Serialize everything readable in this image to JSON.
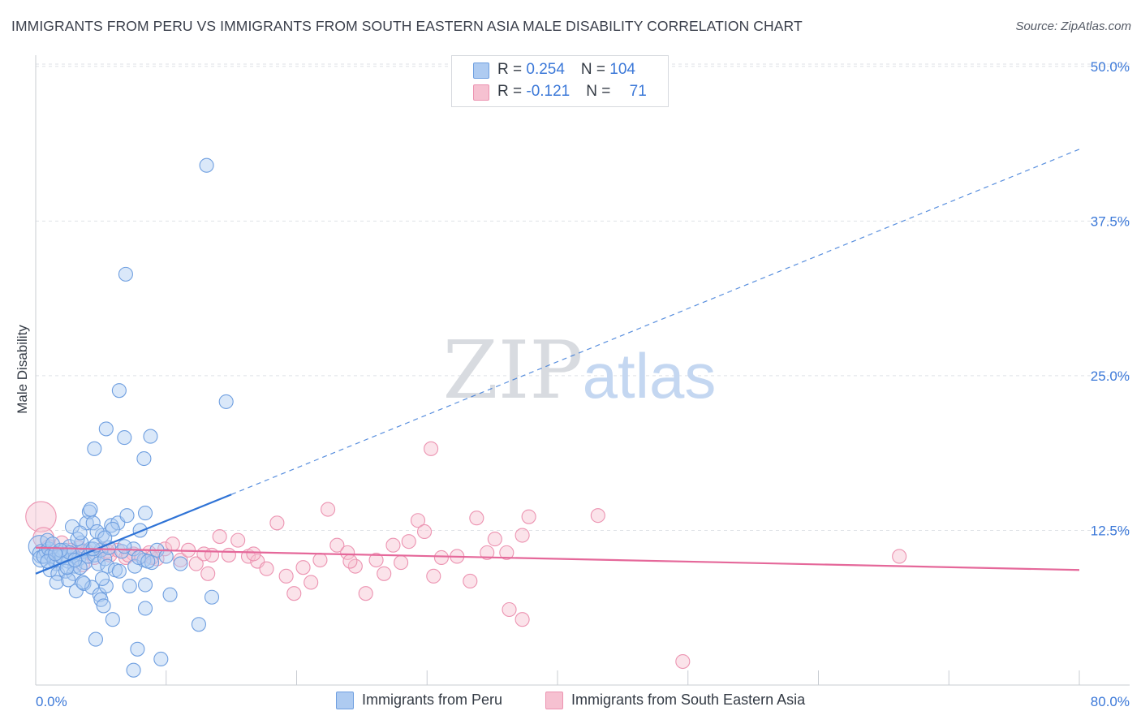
{
  "title": "IMMIGRANTS FROM PERU VS IMMIGRANTS FROM SOUTH EASTERN ASIA MALE DISABILITY CORRELATION CHART",
  "source": "Source: ZipAtlas.com",
  "watermark": {
    "zip": "ZIP",
    "atlas": "atlas"
  },
  "legend": {
    "peru": {
      "r_label": "R = ",
      "r_value": "0.254",
      "n_label": "N = ",
      "n_value": "104"
    },
    "sea": {
      "r_label": "R = ",
      "r_value": "-0.121",
      "n_label": "N = ",
      "n_value": "71"
    }
  },
  "colors": {
    "peru_fill": "#aecbf1",
    "peru_stroke": "#6f9fe0",
    "peru_line": "#2f73d6",
    "sea_fill": "#f6c1d1",
    "sea_stroke": "#ec93b1",
    "sea_line": "#e5689a",
    "tick_label": "#3b78d8",
    "grid": "#dfe2e7"
  },
  "chart_data": {
    "type": "scatter",
    "title": "IMMIGRANTS FROM PERU VS IMMIGRANTS FROM SOUTH EASTERN ASIA MALE DISABILITY CORRELATION CHART",
    "xlabel": "",
    "ylabel": "Male Disability",
    "xlim": [
      0,
      80
    ],
    "ylim": [
      0,
      52
    ],
    "x_tick_labels": [
      "0.0%",
      "80.0%"
    ],
    "y_ticks": [
      12.5,
      25.0,
      37.5,
      50.0
    ],
    "y_tick_labels": [
      "12.5%",
      "25.0%",
      "37.5%",
      "50.0%"
    ],
    "grid": true,
    "legend_position": "top-center",
    "series": [
      {
        "name": "Immigrants from Peru",
        "r": 0.254,
        "n": 104,
        "trend": {
          "x0": 0.0,
          "y0": 9.0,
          "x1": 15.0,
          "y1": 15.4,
          "dashed_to_x": 80.0,
          "dashed_to_y": 43.3
        },
        "points": [
          [
            0.3,
            11.2,
            1.6
          ],
          [
            0.5,
            10.6,
            1.4
          ],
          [
            0.4,
            10.2,
            1.2
          ],
          [
            0.8,
            10.8,
            1.0
          ],
          [
            0.6,
            10.4,
            1.0
          ],
          [
            1.0,
            11.0,
            0.9
          ],
          [
            1.2,
            10.5,
            0.9
          ],
          [
            1.4,
            10.1,
            0.8
          ],
          [
            1.8,
            10.7,
            0.8
          ],
          [
            1.6,
            9.8,
            0.8
          ],
          [
            2.0,
            10.3,
            0.8
          ],
          [
            2.2,
            10.9,
            0.7
          ],
          [
            2.5,
            10.0,
            0.7
          ],
          [
            2.8,
            10.6,
            0.7
          ],
          [
            3.0,
            9.6,
            0.7
          ],
          [
            3.3,
            10.2,
            0.7
          ],
          [
            3.6,
            10.8,
            0.7
          ],
          [
            3.8,
            9.9,
            0.7
          ],
          [
            4.0,
            10.4,
            0.7
          ],
          [
            4.2,
            11.0,
            0.7
          ],
          [
            1.1,
            9.3,
            0.6
          ],
          [
            1.7,
            9.0,
            0.6
          ],
          [
            2.3,
            9.2,
            0.6
          ],
          [
            2.9,
            9.0,
            0.6
          ],
          [
            3.4,
            9.5,
            0.6
          ],
          [
            4.5,
            10.5,
            0.6
          ],
          [
            4.8,
            9.8,
            0.6
          ],
          [
            5.0,
            10.9,
            0.6
          ],
          [
            5.3,
            10.2,
            0.6
          ],
          [
            0.9,
            11.7,
            0.6
          ],
          [
            1.3,
            11.4,
            0.6
          ],
          [
            2.6,
            11.2,
            0.6
          ],
          [
            3.5,
            11.5,
            0.6
          ],
          [
            4.4,
            11.0,
            0.6
          ],
          [
            5.5,
            9.6,
            0.6
          ],
          [
            1.6,
            8.3,
            0.5
          ],
          [
            2.5,
            8.5,
            0.5
          ],
          [
            3.1,
            7.6,
            0.5
          ],
          [
            3.7,
            8.2,
            0.5
          ],
          [
            4.3,
            7.9,
            0.5
          ],
          [
            4.9,
            7.3,
            0.5
          ],
          [
            5.4,
            8.0,
            0.5
          ],
          [
            2.8,
            12.8,
            0.5
          ],
          [
            3.9,
            13.1,
            0.5
          ],
          [
            4.1,
            14.0,
            0.5
          ],
          [
            5.1,
            12.1,
            0.5
          ],
          [
            5.6,
            11.1,
            0.5
          ],
          [
            6.1,
            9.3,
            0.5
          ],
          [
            6.6,
            10.8,
            0.5
          ],
          [
            7.2,
            8.0,
            0.5
          ],
          [
            7.6,
            9.6,
            0.5
          ],
          [
            8.0,
            12.5,
            0.5
          ],
          [
            8.3,
            10.1,
            0.5
          ],
          [
            5.8,
            12.9,
            0.5
          ],
          [
            6.3,
            13.1,
            0.5
          ],
          [
            7.0,
            13.7,
            0.5
          ],
          [
            7.5,
            11.0,
            0.5
          ],
          [
            8.4,
            8.1,
            0.5
          ],
          [
            4.4,
            13.1,
            0.5
          ],
          [
            4.7,
            12.4,
            0.5
          ],
          [
            3.2,
            11.8,
            0.5
          ],
          [
            4.2,
            14.2,
            0.5
          ],
          [
            5.9,
            12.6,
            0.5
          ],
          [
            6.8,
            11.2,
            0.5
          ],
          [
            7.9,
            10.3,
            0.5
          ],
          [
            5.0,
            6.9,
            0.5
          ],
          [
            5.2,
            6.4,
            0.5
          ],
          [
            5.1,
            8.6,
            0.5
          ],
          [
            2.0,
            10.4,
            0.5
          ],
          [
            2.6,
            10.7,
            0.5
          ],
          [
            8.9,
            9.9,
            0.5
          ],
          [
            8.4,
            13.9,
            0.5
          ],
          [
            8.6,
            10.0,
            0.5
          ],
          [
            9.3,
            10.9,
            0.5
          ],
          [
            11.1,
            9.8,
            0.5
          ],
          [
            10.0,
            10.4,
            0.5
          ],
          [
            10.3,
            7.3,
            0.5
          ],
          [
            13.5,
            7.1,
            0.5
          ],
          [
            13.1,
            42.0,
            0.5
          ],
          [
            6.9,
            33.2,
            0.5
          ],
          [
            6.4,
            23.8,
            0.5
          ],
          [
            14.6,
            22.9,
            0.5
          ],
          [
            5.4,
            20.7,
            0.5
          ],
          [
            4.5,
            19.1,
            0.5
          ],
          [
            6.8,
            20.0,
            0.5
          ],
          [
            8.8,
            20.1,
            0.5
          ],
          [
            8.3,
            18.3,
            0.5
          ],
          [
            5.9,
            5.3,
            0.5
          ],
          [
            8.4,
            6.2,
            0.5
          ],
          [
            12.5,
            4.9,
            0.5
          ],
          [
            4.6,
            3.7,
            0.5
          ],
          [
            7.8,
            2.9,
            0.5
          ],
          [
            9.6,
            2.1,
            0.5
          ],
          [
            7.5,
            1.2,
            0.5
          ],
          [
            3.6,
            8.3,
            0.5
          ],
          [
            6.4,
            9.2,
            0.5
          ],
          [
            1.9,
            10.9,
            0.5
          ],
          [
            2.4,
            9.5,
            0.5
          ],
          [
            3.0,
            10.1,
            0.5
          ],
          [
            0.9,
            10.0,
            0.5
          ],
          [
            1.5,
            10.6,
            0.5
          ],
          [
            4.6,
            11.3,
            0.5
          ],
          [
            3.4,
            12.3,
            0.5
          ],
          [
            5.3,
            11.9,
            0.5
          ]
        ]
      },
      {
        "name": "Immigrants from South Eastern Asia",
        "r": -0.121,
        "n": 71,
        "trend": {
          "x0": 0.0,
          "y0": 11.1,
          "x1": 80.0,
          "y1": 9.3
        },
        "points": [
          [
            0.4,
            13.6,
            2.2
          ],
          [
            0.6,
            11.9,
            1.5
          ],
          [
            1.0,
            11.2,
            1.0
          ],
          [
            1.5,
            10.6,
            0.9
          ],
          [
            2.0,
            11.5,
            0.8
          ],
          [
            2.7,
            10.9,
            0.7
          ],
          [
            3.3,
            11.1,
            0.7
          ],
          [
            3.9,
            10.8,
            0.7
          ],
          [
            4.5,
            10.3,
            0.6
          ],
          [
            5.1,
            11.0,
            0.6
          ],
          [
            5.7,
            10.5,
            0.6
          ],
          [
            6.3,
            10.9,
            0.6
          ],
          [
            6.9,
            10.3,
            0.6
          ],
          [
            7.5,
            10.6,
            0.5
          ],
          [
            8.1,
            10.4,
            0.5
          ],
          [
            8.7,
            10.7,
            0.5
          ],
          [
            9.3,
            10.2,
            0.5
          ],
          [
            9.9,
            11.0,
            0.5
          ],
          [
            10.5,
            11.4,
            0.5
          ],
          [
            11.1,
            10.1,
            0.5
          ],
          [
            11.7,
            10.9,
            0.5
          ],
          [
            12.3,
            9.8,
            0.5
          ],
          [
            12.9,
            10.6,
            0.5
          ],
          [
            13.5,
            10.5,
            0.5
          ],
          [
            14.1,
            12.0,
            0.5
          ],
          [
            14.8,
            10.5,
            0.5
          ],
          [
            15.5,
            11.7,
            0.5
          ],
          [
            16.3,
            10.4,
            0.5
          ],
          [
            17.0,
            10.0,
            0.5
          ],
          [
            17.7,
            9.4,
            0.5
          ],
          [
            18.5,
            13.1,
            0.5
          ],
          [
            19.2,
            8.8,
            0.5
          ],
          [
            19.8,
            7.4,
            0.5
          ],
          [
            20.5,
            9.5,
            0.5
          ],
          [
            21.1,
            8.3,
            0.5
          ],
          [
            21.8,
            10.1,
            0.5
          ],
          [
            22.4,
            14.2,
            0.5
          ],
          [
            23.1,
            11.3,
            0.5
          ],
          [
            23.9,
            10.7,
            0.5
          ],
          [
            24.5,
            9.6,
            0.5
          ],
          [
            25.3,
            7.4,
            0.5
          ],
          [
            26.1,
            10.1,
            0.5
          ],
          [
            26.7,
            9.0,
            0.5
          ],
          [
            27.4,
            11.3,
            0.5
          ],
          [
            28.0,
            9.9,
            0.5
          ],
          [
            28.6,
            11.6,
            0.5
          ],
          [
            29.3,
            13.3,
            0.5
          ],
          [
            29.8,
            12.4,
            0.5
          ],
          [
            30.5,
            8.8,
            0.5
          ],
          [
            31.1,
            10.3,
            0.5
          ],
          [
            32.3,
            10.4,
            0.5
          ],
          [
            33.3,
            8.4,
            0.5
          ],
          [
            33.8,
            13.5,
            0.5
          ],
          [
            34.6,
            10.7,
            0.5
          ],
          [
            35.2,
            11.8,
            0.5
          ],
          [
            36.1,
            10.7,
            0.5
          ],
          [
            37.3,
            12.1,
            0.5
          ],
          [
            37.8,
            13.6,
            0.5
          ],
          [
            30.3,
            19.1,
            0.5
          ],
          [
            43.1,
            13.7,
            0.5
          ],
          [
            36.3,
            6.1,
            0.5
          ],
          [
            37.3,
            5.3,
            0.5
          ],
          [
            49.6,
            1.9,
            0.5
          ],
          [
            66.2,
            10.4,
            0.5
          ],
          [
            3.6,
            9.7,
            0.5
          ],
          [
            5.5,
            10.8,
            0.5
          ],
          [
            7.1,
            10.5,
            0.5
          ],
          [
            8.9,
            10.3,
            0.5
          ],
          [
            13.2,
            9.0,
            0.5
          ],
          [
            16.7,
            10.6,
            0.5
          ],
          [
            24.1,
            10.0,
            0.5
          ]
        ]
      }
    ]
  },
  "bottom_legend": [
    {
      "label": "Immigrants from Peru"
    },
    {
      "label": "Immigrants from South Eastern Asia"
    }
  ]
}
